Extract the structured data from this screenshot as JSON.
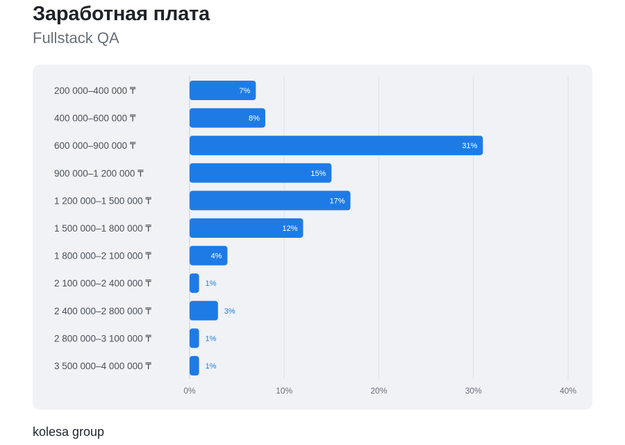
{
  "header": {
    "title": "Заработная плата",
    "subtitle": "Fullstack QA"
  },
  "footer": {
    "brand": "kolesa group"
  },
  "colors": {
    "bar": "#1e7be6",
    "label_inside": "#ffffff",
    "label_outside": "#1e7be6",
    "panel_bg": "#f0f2f6",
    "grid": "#dde1e7",
    "axis_text": "#6a7078",
    "category_text": "#4a5058"
  },
  "chart_data": {
    "type": "bar",
    "orientation": "horizontal",
    "categories": [
      "200 000–400 000 ₸",
      "400 000–600 000 ₸",
      "600 000–900 000 ₸",
      "900 000–1 200 000 ₸",
      "1 200 000–1 500 000 ₸",
      "1 500 000–1 800 000 ₸",
      "1 800 000–2 100 000 ₸",
      "2 100 000–2 400 000 ₸",
      "2 400 000–2 800 000 ₸",
      "2 800 000–3 100 000 ₸",
      "3 500 000–4 000 000 ₸"
    ],
    "values": [
      7,
      8,
      31,
      15,
      17,
      12,
      4,
      1,
      3,
      1,
      1
    ],
    "value_labels": [
      "7%",
      "8%",
      "31%",
      "15%",
      "17%",
      "12%",
      "4%",
      "1%",
      "3%",
      "1%",
      "1%"
    ],
    "xlim": [
      0,
      40
    ],
    "xticks": [
      0,
      10,
      20,
      30,
      40
    ],
    "xtick_labels": [
      "0%",
      "10%",
      "20%",
      "30%",
      "40%"
    ],
    "grid": true
  }
}
